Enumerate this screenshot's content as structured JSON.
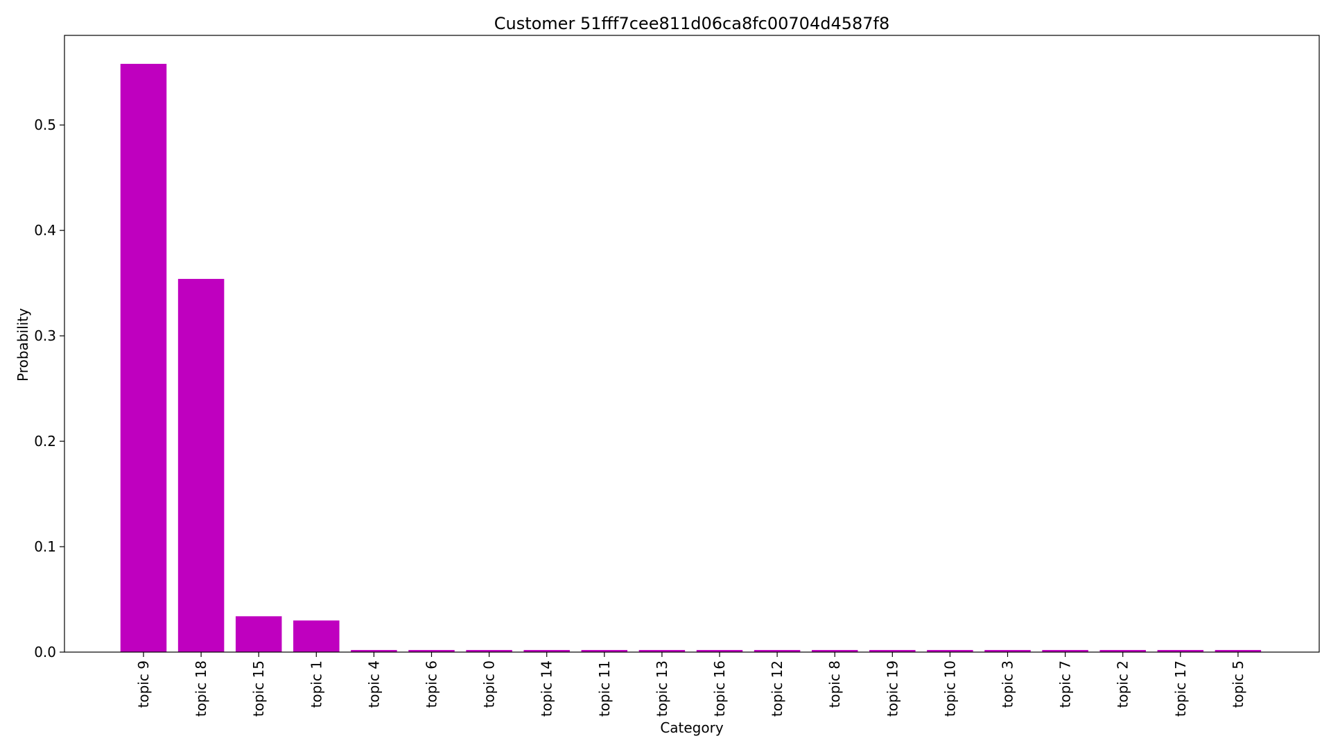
{
  "chart_data": {
    "type": "bar",
    "title": "Customer 51fff7cee811d06ca8fc00704d4587f8",
    "xlabel": "Category",
    "ylabel": "Probability",
    "categories": [
      "topic 9",
      "topic 18",
      "topic 15",
      "topic 1",
      "topic 4",
      "topic 6",
      "topic 0",
      "topic 14",
      "topic 11",
      "topic 13",
      "topic 16",
      "topic 12",
      "topic 8",
      "topic 19",
      "topic 10",
      "topic 3",
      "topic 7",
      "topic 2",
      "topic 17",
      "topic 5"
    ],
    "values": [
      0.558,
      0.354,
      0.034,
      0.03,
      0.002,
      0.002,
      0.002,
      0.002,
      0.002,
      0.002,
      0.002,
      0.002,
      0.002,
      0.002,
      0.002,
      0.002,
      0.002,
      0.002,
      0.002,
      0.002
    ],
    "ylim": [
      0,
      0.585
    ],
    "yticks": [
      0.0,
      0.1,
      0.2,
      0.3,
      0.4,
      0.5
    ],
    "ytick_labels": [
      "0.0",
      "0.1",
      "0.2",
      "0.3",
      "0.4",
      "0.5"
    ],
    "bar_color": "#bf00bf",
    "grid": false,
    "legend": "none"
  }
}
